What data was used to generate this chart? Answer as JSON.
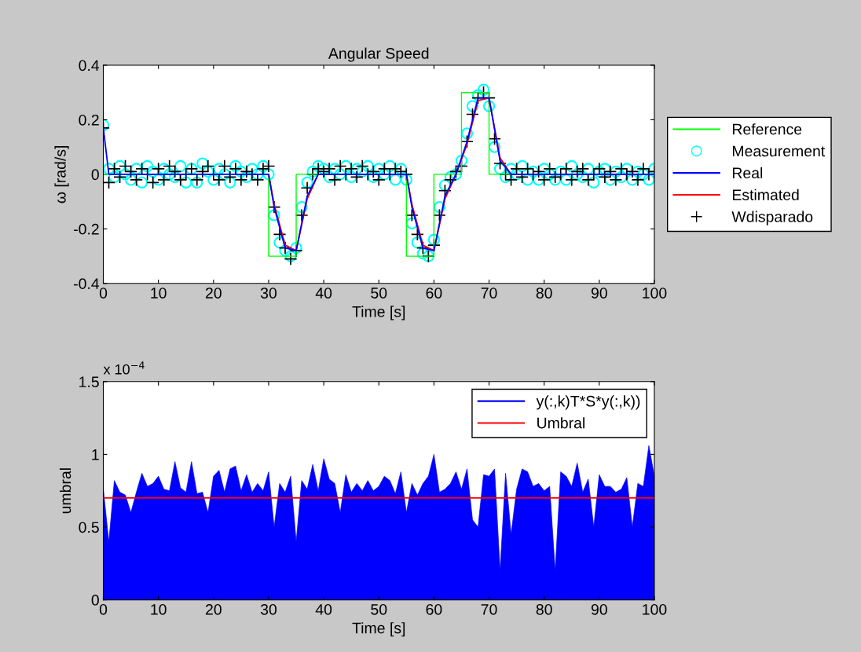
{
  "chart_data": [
    {
      "type": "line",
      "title": "Angular Speed",
      "xlabel": "Time [s]",
      "ylabel": "ω [rad/s]",
      "xlim": [
        0,
        100
      ],
      "xticks": [
        0,
        10,
        20,
        30,
        40,
        50,
        60,
        70,
        80,
        90,
        100
      ],
      "ylim": [
        -0.4,
        0.4
      ],
      "yticks": [
        -0.4,
        -0.2,
        0,
        0.2,
        0.4
      ],
      "grid": false,
      "legend": "right",
      "series": [
        {
          "name": "Reference",
          "type": "step",
          "color": "#00ff00",
          "x": [
            0,
            30,
            35,
            55,
            60,
            65,
            70,
            100
          ],
          "values": [
            0,
            -0.3,
            0,
            -0.3,
            0,
            0.3,
            0,
            0
          ]
        },
        {
          "name": "Measurement",
          "type": "scatter",
          "marker": "circle",
          "color": "#00ffff",
          "x": [
            0,
            1,
            2,
            3,
            4,
            5,
            6,
            7,
            8,
            9,
            10,
            11,
            12,
            13,
            14,
            15,
            16,
            17,
            18,
            19,
            20,
            21,
            22,
            23,
            24,
            25,
            26,
            27,
            28,
            29,
            30,
            31,
            32,
            33,
            34,
            35,
            36,
            37,
            38,
            39,
            40,
            41,
            42,
            43,
            44,
            45,
            46,
            47,
            48,
            49,
            50,
            51,
            52,
            53,
            54,
            55,
            56,
            57,
            58,
            59,
            60,
            61,
            62,
            63,
            64,
            65,
            66,
            67,
            68,
            69,
            70,
            71,
            72,
            73,
            74,
            75,
            76,
            77,
            78,
            79,
            80,
            81,
            82,
            83,
            84,
            85,
            86,
            87,
            88,
            89,
            90,
            91,
            92,
            93,
            94,
            95,
            96,
            97,
            98,
            99,
            100
          ],
          "values": [
            0.18,
            0.02,
            -0.01,
            0.03,
            0.0,
            -0.02,
            0.02,
            -0.03,
            0.03,
            0.01,
            -0.02,
            0.02,
            0.0,
            -0.01,
            0.03,
            -0.03,
            0.02,
            -0.03,
            0.04,
            0.01,
            -0.02,
            0.02,
            0.0,
            -0.03,
            0.03,
            0.01,
            -0.01,
            0.02,
            0.0,
            0.03,
            0.0,
            -0.15,
            -0.25,
            -0.28,
            -0.3,
            -0.27,
            -0.12,
            -0.03,
            0.01,
            0.03,
            0.02,
            -0.01,
            0.02,
            0.0,
            0.03,
            -0.01,
            0.02,
            0.01,
            0.03,
            -0.01,
            0.02,
            0.0,
            0.03,
            -0.02,
            0.02,
            -0.02,
            -0.18,
            -0.25,
            -0.29,
            -0.3,
            -0.24,
            -0.12,
            -0.04,
            -0.01,
            0.0,
            0.05,
            0.15,
            0.25,
            0.29,
            0.31,
            0.25,
            0.1,
            0.02,
            -0.01,
            0.02,
            0.0,
            0.03,
            -0.02,
            0.01,
            -0.02,
            0.02,
            0.0,
            -0.02,
            0.01,
            -0.02,
            0.03,
            0.0,
            -0.01,
            0.02,
            -0.03,
            0.01,
            0.02,
            -0.02,
            0.01,
            -0.01,
            0.02,
            -0.02,
            0.01,
            0.0,
            -0.02,
            0.02
          ]
        },
        {
          "name": "Real",
          "color": "#0000ff",
          "x": [
            0,
            1,
            30,
            31,
            33,
            35,
            37,
            39,
            55,
            56,
            58,
            60,
            62,
            64,
            66,
            68,
            70,
            72,
            74,
            100
          ],
          "values": [
            0.17,
            0,
            0,
            -0.12,
            -0.27,
            -0.28,
            -0.08,
            0,
            0,
            -0.12,
            -0.27,
            -0.28,
            -0.08,
            0,
            0.12,
            0.28,
            0.28,
            0.05,
            0,
            0
          ]
        },
        {
          "name": "Estimated",
          "color": "#ff0000",
          "x": [
            30,
            31,
            33,
            35,
            37,
            39,
            55,
            56,
            58,
            60,
            62,
            64,
            66,
            68,
            70,
            72,
            74,
            100
          ],
          "values": [
            0,
            -0.11,
            -0.26,
            -0.28,
            -0.09,
            0,
            0,
            -0.11,
            -0.26,
            -0.28,
            -0.09,
            0,
            0.11,
            0.27,
            0.28,
            0.06,
            0,
            0
          ]
        },
        {
          "name": "Wdisparado",
          "type": "scatter",
          "marker": "cross",
          "color": "#000000",
          "x": [
            0,
            1,
            2,
            3,
            4,
            5,
            6,
            7,
            8,
            9,
            10,
            11,
            12,
            13,
            14,
            15,
            16,
            17,
            18,
            19,
            20,
            21,
            22,
            23,
            24,
            25,
            26,
            27,
            28,
            29,
            30,
            31,
            32,
            33,
            34,
            35,
            36,
            37,
            38,
            39,
            40,
            41,
            42,
            43,
            44,
            45,
            46,
            47,
            48,
            49,
            50,
            51,
            52,
            53,
            54,
            55,
            56,
            57,
            58,
            59,
            60,
            61,
            62,
            63,
            64,
            65,
            66,
            67,
            68,
            69,
            70,
            71,
            72,
            73,
            74,
            75,
            76,
            77,
            78,
            79,
            80,
            81,
            82,
            83,
            84,
            85,
            86,
            87,
            88,
            89,
            90,
            91,
            92,
            93,
            94,
            95,
            96,
            97,
            98,
            99,
            100
          ],
          "values": [
            0.17,
            -0.03,
            0.02,
            -0.01,
            0.03,
            0.01,
            -0.02,
            0.02,
            0.0,
            -0.03,
            0.02,
            -0.02,
            0.03,
            0.01,
            -0.02,
            0.0,
            0.02,
            -0.02,
            0.01,
            0.03,
            0.0,
            -0.02,
            0.03,
            -0.01,
            0.02,
            -0.02,
            0.01,
            0.0,
            -0.02,
            0.02,
            0.03,
            -0.12,
            -0.22,
            -0.27,
            -0.31,
            -0.28,
            -0.15,
            -0.05,
            0.0,
            0.02,
            0.01,
            0.02,
            -0.02,
            0.03,
            0.0,
            0.02,
            -0.01,
            0.03,
            0.0,
            0.01,
            -0.02,
            0.02,
            0.0,
            0.02,
            0.01,
            0.0,
            -0.15,
            -0.22,
            -0.27,
            -0.3,
            -0.26,
            -0.15,
            -0.06,
            -0.02,
            0.01,
            0.03,
            0.12,
            0.22,
            0.28,
            0.3,
            0.28,
            0.13,
            0.04,
            0.0,
            -0.02,
            0.02,
            -0.01,
            0.02,
            0.0,
            0.01,
            -0.02,
            0.02,
            -0.01,
            0.0,
            0.02,
            -0.02,
            0.01,
            0.02,
            -0.02,
            0.0,
            0.02,
            -0.01,
            0.01,
            -0.02,
            0.02,
            0.0,
            0.01,
            -0.02,
            0.02,
            0.0,
            0.01
          ]
        }
      ]
    },
    {
      "type": "line",
      "xlabel": "Time [s]",
      "ylabel": "umbral",
      "annotations": [
        "x 10$^{−4}$"
      ],
      "xlim": [
        0,
        100
      ],
      "xticks": [
        0,
        10,
        20,
        30,
        40,
        50,
        60,
        70,
        80,
        90,
        100
      ],
      "ylim": [
        0,
        1.5
      ],
      "yticks": [
        0,
        0.5,
        1,
        1.5
      ],
      "grid": false,
      "legend": "top right",
      "series": [
        {
          "name": "y(:,k)T*S*y(:,k))",
          "type": "area",
          "color": "#0000ff",
          "x": [
            0,
            1,
            2,
            3,
            4,
            5,
            6,
            7,
            8,
            9,
            10,
            11,
            12,
            13,
            14,
            15,
            16,
            17,
            18,
            19,
            20,
            21,
            22,
            23,
            24,
            25,
            26,
            27,
            28,
            29,
            30,
            31,
            32,
            33,
            34,
            35,
            36,
            37,
            38,
            39,
            40,
            41,
            42,
            43,
            44,
            45,
            46,
            47,
            48,
            49,
            50,
            51,
            52,
            53,
            54,
            55,
            56,
            57,
            58,
            59,
            60,
            61,
            62,
            63,
            64,
            65,
            66,
            67,
            68,
            69,
            70,
            71,
            72,
            73,
            74,
            75,
            76,
            77,
            78,
            79,
            80,
            81,
            82,
            83,
            84,
            85,
            86,
            87,
            88,
            89,
            90,
            91,
            92,
            93,
            94,
            95,
            96,
            97,
            98,
            99,
            100
          ],
          "values": [
            0.76,
            0.4,
            0.82,
            0.74,
            0.72,
            0.6,
            0.74,
            0.87,
            0.78,
            0.8,
            0.85,
            0.76,
            0.75,
            0.95,
            0.77,
            0.74,
            0.95,
            0.73,
            0.74,
            0.6,
            0.85,
            0.89,
            0.74,
            0.9,
            0.92,
            0.75,
            0.86,
            0.74,
            0.8,
            0.75,
            0.88,
            0.5,
            0.8,
            0.74,
            0.85,
            0.4,
            0.82,
            0.76,
            0.93,
            0.75,
            0.97,
            0.83,
            0.8,
            0.6,
            0.86,
            0.74,
            0.8,
            0.75,
            0.82,
            0.75,
            0.78,
            0.85,
            0.82,
            0.73,
            0.88,
            0.6,
            0.8,
            0.72,
            0.8,
            0.85,
            1.0,
            0.74,
            0.76,
            0.8,
            0.88,
            0.76,
            0.9,
            0.55,
            0.5,
            0.86,
            0.85,
            0.9,
            0.2,
            0.87,
            0.45,
            0.76,
            0.9,
            0.88,
            0.78,
            0.8,
            0.75,
            0.78,
            0.2,
            0.88,
            0.85,
            0.78,
            0.94,
            0.74,
            0.83,
            0.5,
            0.86,
            0.78,
            0.78,
            0.74,
            0.76,
            0.84,
            0.5,
            0.8,
            0.78,
            1.06,
            0.85
          ]
        },
        {
          "name": "Umbral",
          "color": "#ff0000",
          "x": [
            0,
            100
          ],
          "values": [
            0.7,
            0.7
          ]
        }
      ]
    }
  ]
}
